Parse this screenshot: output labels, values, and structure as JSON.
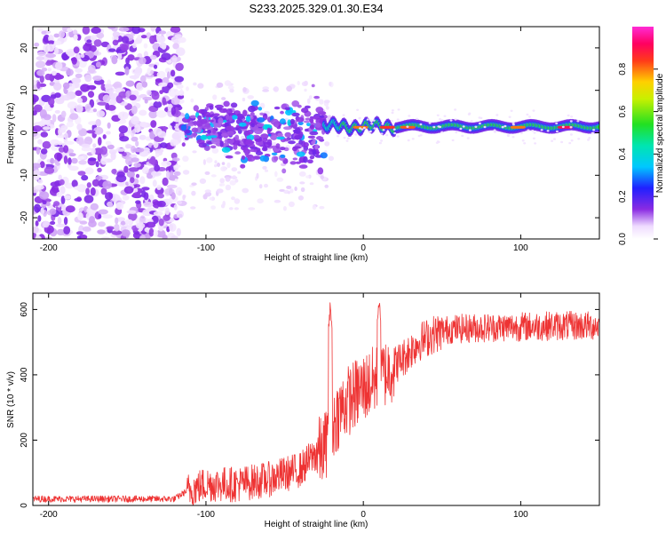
{
  "figure_title": "S233.2025.329.01.30.E34",
  "chart_data": [
    {
      "type": "heatmap",
      "title": "S233.2025.329.01.30.E34",
      "xlabel": "Height of straight line (km)",
      "ylabel": "Frequency (Hz)",
      "xlim": [
        -210,
        150
      ],
      "ylim": [
        -25,
        25
      ],
      "xticks": [
        -200,
        -100,
        0,
        100
      ],
      "yticks": [
        -20,
        -10,
        0,
        10,
        20
      ],
      "colorbar": {
        "label": "Normalized spectral amplitude",
        "range": [
          0,
          1
        ],
        "ticks": [
          0.0,
          0.2,
          0.4,
          0.6,
          0.8
        ],
        "tick_labels": [
          "0.0",
          "0.2",
          "0.4",
          "0.6",
          "0.8"
        ],
        "colormap": "rainbow (white-purple-blue-cyan-green-yellow-red-magenta)"
      },
      "regions": [
        {
          "x_range": [
            -210,
            -115
          ],
          "description": "broadband noise",
          "freq_spread": [
            -25,
            25
          ],
          "amplitude": [
            0.05,
            0.2
          ]
        },
        {
          "x_range": [
            -115,
            -25
          ],
          "description": "scattered signal",
          "freq_spread": [
            -10,
            7
          ],
          "amplitude": [
            0.15,
            0.45
          ]
        },
        {
          "x_range": [
            -25,
            150
          ],
          "description": "narrow tone",
          "center_freq": 1.5,
          "bandwidth": 2.5,
          "amplitude": [
            0.4,
            0.95
          ]
        }
      ]
    },
    {
      "type": "line",
      "xlabel": "Height of straight line (km)",
      "ylabel": "SNR (10 * v/v)",
      "xlim": [
        -210,
        150
      ],
      "ylim": [
        0,
        650
      ],
      "xticks": [
        -200,
        -100,
        0,
        100
      ],
      "yticks": [
        0,
        200,
        400,
        600
      ],
      "series": [
        {
          "name": "SNR",
          "color": "#ee3333",
          "control_points": [
            {
              "x": -210,
              "y": 20
            },
            {
              "x": -150,
              "y": 20
            },
            {
              "x": -120,
              "y": 20
            },
            {
              "x": -112,
              "y": 45
            },
            {
              "x": -100,
              "y": 65
            },
            {
              "x": -80,
              "y": 65
            },
            {
              "x": -60,
              "y": 80
            },
            {
              "x": -40,
              "y": 110
            },
            {
              "x": -30,
              "y": 160
            },
            {
              "x": -25,
              "y": 170
            },
            {
              "x": -22,
              "y": 220
            },
            {
              "x": -15,
              "y": 290
            },
            {
              "x": -10,
              "y": 320
            },
            {
              "x": 0,
              "y": 360
            },
            {
              "x": 10,
              "y": 390
            },
            {
              "x": 15,
              "y": 410
            },
            {
              "x": 25,
              "y": 450
            },
            {
              "x": 35,
              "y": 500
            },
            {
              "x": 45,
              "y": 525
            },
            {
              "x": 55,
              "y": 540
            },
            {
              "x": 80,
              "y": 545
            },
            {
              "x": 120,
              "y": 550
            },
            {
              "x": 150,
              "y": 550
            }
          ],
          "spikes": [
            {
              "x": -21,
              "y": 628
            },
            {
              "x": 10,
              "y": 645
            }
          ]
        }
      ]
    }
  ]
}
